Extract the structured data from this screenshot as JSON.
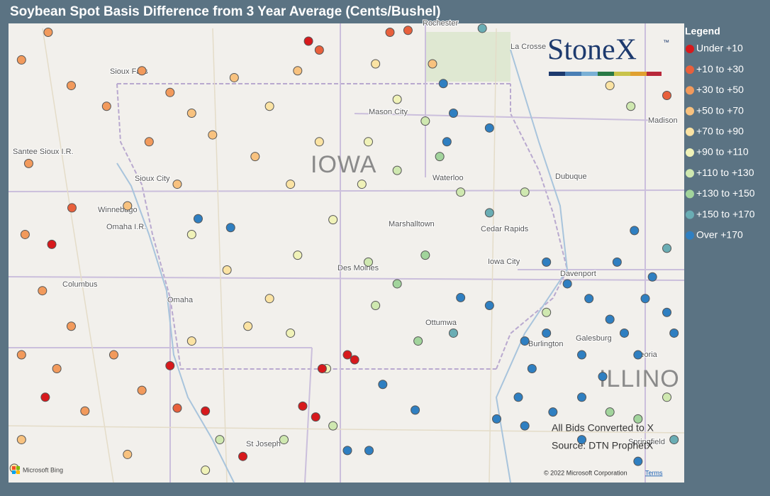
{
  "header": {
    "title": "Soybean Spot Basis Difference from 3 Year Average (Cents/Bushel)"
  },
  "legend": {
    "title": "Legend",
    "items": [
      {
        "label": "Under +10",
        "color": "#d7191c"
      },
      {
        "label": "+10 to +30",
        "color": "#e8603c"
      },
      {
        "label": "+30 to +50",
        "color": "#f29a5c"
      },
      {
        "label": "+50 to +70",
        "color": "#f8c27f"
      },
      {
        "label": "+70 to +90",
        "color": "#fbe3a3"
      },
      {
        "label": "+90 to +110",
        "color": "#f0f2b8"
      },
      {
        "label": "+110 to +130",
        "color": "#cfe8b0"
      },
      {
        "label": "+130 to +150",
        "color": "#a2d49c"
      },
      {
        "label": "+150 to +170",
        "color": "#6aadb4"
      },
      {
        "label": "Over +170",
        "color": "#2f7fc1"
      }
    ]
  },
  "logo": {
    "text": "StoneX",
    "mark": "™"
  },
  "map": {
    "labels": [
      "IOWA",
      "ILLINO",
      "Sioux City",
      "Mason City",
      "Waterloo",
      "Dubuque",
      "Cedar Rapids",
      "Marshalltown",
      "Iowa City",
      "Des Moines",
      "Davenport",
      "Omaha",
      "Columbus",
      "Ottumwa",
      "Burlington",
      "Galesburg",
      "Peoria",
      "St Joseph",
      "La Crosse",
      "Rochester",
      "Madison",
      "Santee Sioux I.R.",
      "Winnebago",
      "Omaha I.R.",
      "Sioux Falls",
      "Springfield"
    ],
    "notes": [
      "All Bids Converted to X",
      "Source: DTN ProphetX"
    ],
    "copyright": "© 2022 Microsoft Corporation",
    "terms": "Terms",
    "bing": "Microsoft Bing",
    "points": [
      [
        -97.8,
        43.97,
        2
      ],
      [
        -98.17,
        43.69,
        2
      ],
      [
        -97.48,
        43.43,
        2
      ],
      [
        -96.99,
        43.22,
        2
      ],
      [
        -98.07,
        42.64,
        2
      ],
      [
        -97.47,
        42.19,
        1
      ],
      [
        -98.12,
        41.92,
        2
      ],
      [
        -97.75,
        41.82,
        0
      ],
      [
        -97.88,
        41.35,
        2
      ],
      [
        -97.48,
        40.99,
        2
      ],
      [
        -98.17,
        40.7,
        2
      ],
      [
        -97.68,
        40.56,
        2
      ],
      [
        -97.84,
        40.27,
        0
      ],
      [
        -97.29,
        40.13,
        2
      ],
      [
        -96.89,
        40.7,
        2
      ],
      [
        -96.5,
        40.34,
        2
      ],
      [
        -96.11,
        40.59,
        0
      ],
      [
        -95.62,
        40.13,
        0
      ],
      [
        -96.01,
        40.16,
        1
      ],
      [
        -98.17,
        39.84,
        3
      ],
      [
        -96.7,
        39.69,
        3
      ],
      [
        -98.27,
        39.55,
        4
      ],
      [
        -96.5,
        43.58,
        2
      ],
      [
        -96.11,
        43.36,
        2
      ],
      [
        -95.81,
        43.15,
        3
      ],
      [
        -96.4,
        42.86,
        2
      ],
      [
        -95.52,
        42.93,
        3
      ],
      [
        -96.01,
        42.43,
        3
      ],
      [
        -96.7,
        42.21,
        3
      ],
      [
        -95.22,
        43.51,
        3
      ],
      [
        -94.73,
        43.22,
        4
      ],
      [
        -94.34,
        43.58,
        3
      ],
      [
        -94.04,
        42.86,
        4
      ],
      [
        -94.93,
        42.71,
        3
      ],
      [
        -94.44,
        42.43,
        4
      ],
      [
        -93.26,
        43.65,
        4
      ],
      [
        -92.96,
        43.29,
        5
      ],
      [
        -93.36,
        42.86,
        5
      ],
      [
        -92.57,
        43.07,
        6
      ],
      [
        -93.45,
        42.43,
        5
      ],
      [
        -92.96,
        42.57,
        6
      ],
      [
        -92.37,
        42.71,
        7
      ],
      [
        -92.08,
        42.35,
        6
      ],
      [
        -91.68,
        42.14,
        8
      ],
      [
        -91.19,
        42.35,
        6
      ],
      [
        -92.18,
        43.15,
        9
      ],
      [
        -91.68,
        43.0,
        9
      ],
      [
        -92.27,
        42.86,
        9
      ],
      [
        -92.32,
        43.45,
        9
      ],
      [
        -91.78,
        44.01,
        8
      ],
      [
        -90.01,
        43.43,
        4
      ],
      [
        -89.72,
        43.22,
        6
      ],
      [
        -95.81,
        41.92,
        5
      ],
      [
        -95.72,
        42.08,
        9
      ],
      [
        -95.27,
        41.99,
        9
      ],
      [
        -95.32,
        41.56,
        4
      ],
      [
        -94.73,
        41.27,
        4
      ],
      [
        -94.34,
        41.71,
        5
      ],
      [
        -93.85,
        42.07,
        5
      ],
      [
        -93.36,
        41.64,
        6
      ],
      [
        -92.96,
        41.42,
        7
      ],
      [
        -92.57,
        41.71,
        7
      ],
      [
        -95.81,
        40.84,
        4
      ],
      [
        -95.03,
        40.99,
        4
      ],
      [
        -94.44,
        40.92,
        5
      ],
      [
        -93.94,
        40.56,
        5
      ],
      [
        -93.65,
        40.7,
        0
      ],
      [
        -93.55,
        40.65,
        0
      ],
      [
        -94.0,
        40.56,
        0
      ],
      [
        -94.27,
        40.18,
        0
      ],
      [
        -94.09,
        40.07,
        0
      ],
      [
        -95.1,
        39.67,
        0
      ],
      [
        -93.26,
        41.2,
        6
      ],
      [
        -92.67,
        40.84,
        7
      ],
      [
        -92.18,
        40.92,
        8
      ],
      [
        -93.16,
        40.4,
        9
      ],
      [
        -92.71,
        40.14,
        9
      ],
      [
        -93.65,
        39.73,
        9
      ],
      [
        -93.35,
        39.73,
        9
      ],
      [
        -94.53,
        39.84,
        6
      ],
      [
        -93.85,
        39.98,
        6
      ],
      [
        -95.62,
        39.53,
        5
      ],
      [
        -95.42,
        39.84,
        6
      ],
      [
        -92.08,
        41.28,
        9
      ],
      [
        -91.68,
        41.2,
        9
      ],
      [
        -91.19,
        40.84,
        9
      ],
      [
        -90.89,
        40.92,
        9
      ],
      [
        -91.09,
        40.56,
        9
      ],
      [
        -91.28,
        40.27,
        9
      ],
      [
        -91.58,
        40.05,
        9
      ],
      [
        -91.19,
        39.98,
        9
      ],
      [
        -90.8,
        40.12,
        9
      ],
      [
        -90.89,
        41.64,
        9
      ],
      [
        -90.6,
        41.42,
        9
      ],
      [
        -90.3,
        41.27,
        9
      ],
      [
        -90.01,
        41.06,
        9
      ],
      [
        -89.81,
        40.92,
        9
      ],
      [
        -89.52,
        41.27,
        9
      ],
      [
        -89.22,
        41.13,
        9
      ],
      [
        -89.12,
        40.92,
        9
      ],
      [
        -90.4,
        40.7,
        9
      ],
      [
        -90.11,
        40.48,
        9
      ],
      [
        -89.62,
        40.7,
        9
      ],
      [
        -90.4,
        40.27,
        9
      ],
      [
        -89.91,
        41.64,
        9
      ],
      [
        -89.67,
        41.96,
        9
      ],
      [
        -89.42,
        41.49,
        9
      ],
      [
        -89.22,
        41.78,
        8
      ],
      [
        -90.01,
        40.12,
        7
      ],
      [
        -89.62,
        40.05,
        7
      ],
      [
        -89.22,
        40.27,
        6
      ],
      [
        -90.89,
        41.13,
        6
      ],
      [
        -90.4,
        39.84,
        9
      ],
      [
        -89.62,
        39.62,
        9
      ],
      [
        -89.12,
        39.84,
        8
      ],
      [
        -92.47,
        43.65,
        3
      ],
      [
        -93.06,
        43.97,
        1
      ],
      [
        -92.81,
        43.99,
        1
      ],
      [
        -94.19,
        43.88,
        0
      ],
      [
        -94.04,
        43.79,
        1
      ],
      [
        -89.22,
        43.33,
        1
      ]
    ]
  }
}
